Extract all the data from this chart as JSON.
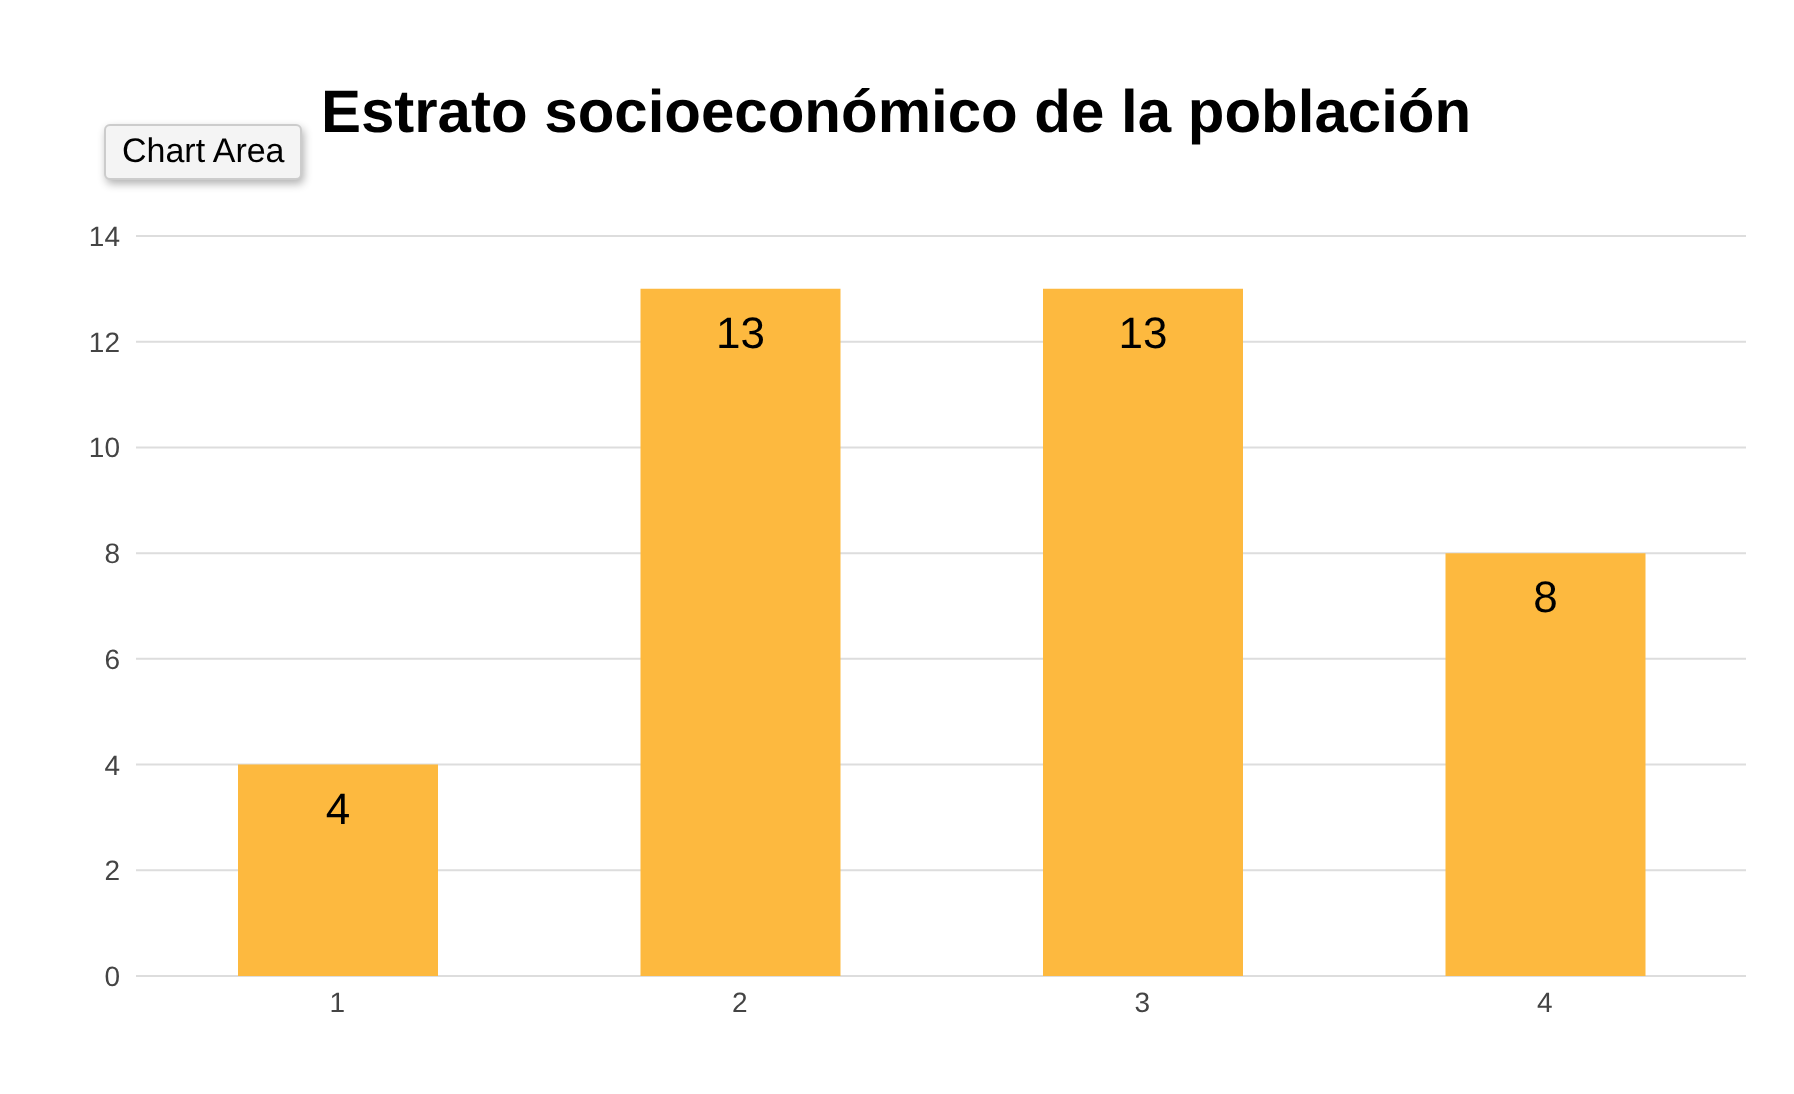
{
  "chart_data": {
    "type": "bar",
    "title": "Estrato socioeconómico de la población",
    "categories": [
      "1",
      "2",
      "3",
      "4"
    ],
    "values": [
      4,
      13,
      13,
      8
    ],
    "color": "#fdb93f",
    "ylim": [
      0,
      14
    ],
    "yticks": [
      0,
      2,
      4,
      6,
      8,
      10,
      12,
      14
    ],
    "grid": "y",
    "data_labels": true,
    "annotations": [
      "Chart Area"
    ]
  }
}
